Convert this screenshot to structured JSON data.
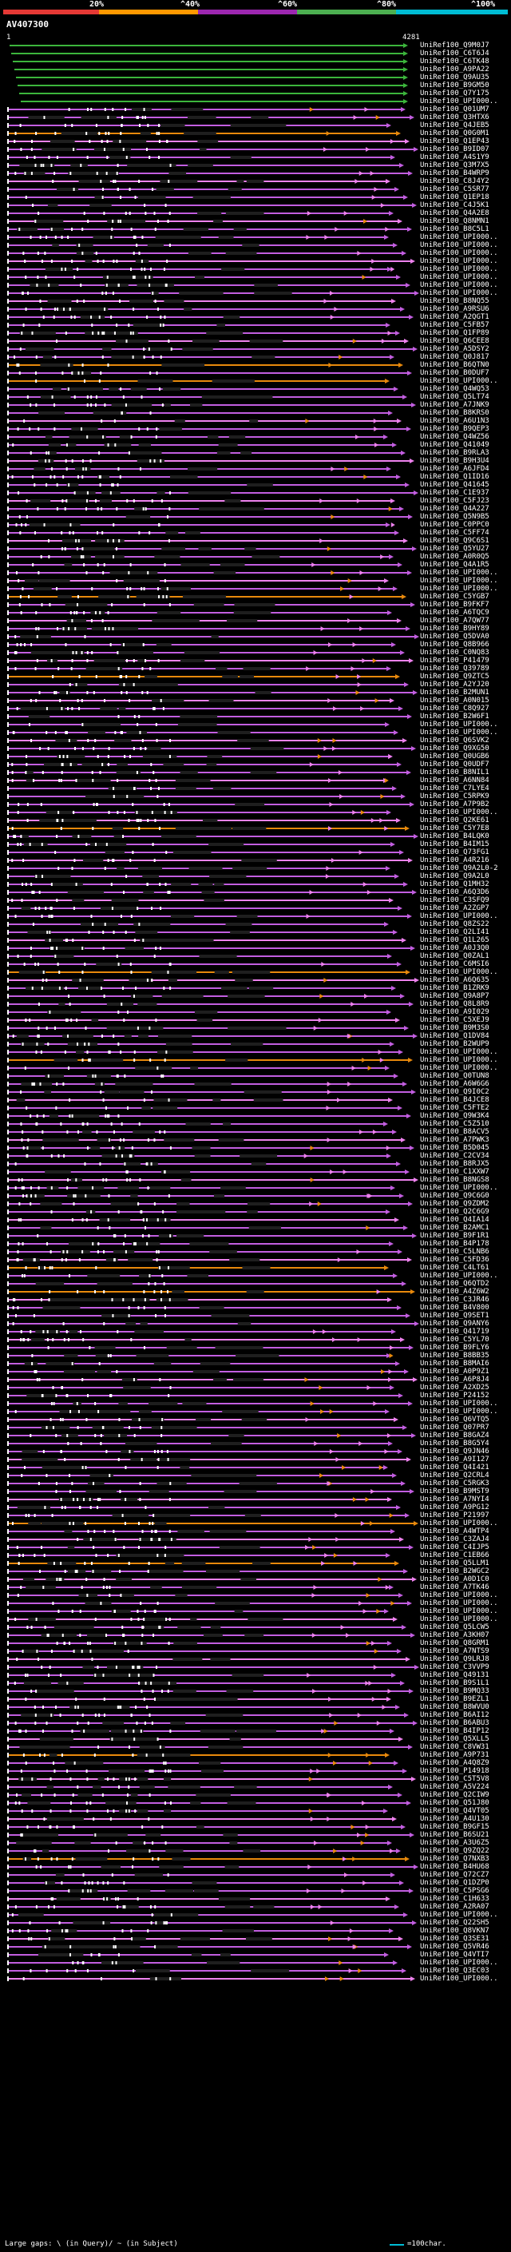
{
  "legend": {
    "labels": [
      "20%",
      "^40%",
      "^60%",
      "^80%",
      "^100%"
    ],
    "colors": [
      "#e53935",
      "#ff9800",
      "#9c27b0",
      "#4caf50",
      "#00bcd4"
    ]
  },
  "query": {
    "id": "AV407300",
    "start": "1",
    "end": "4281"
  },
  "colors": {
    "green": "#3cb53c",
    "purple": "#c25ee0",
    "pink": "#ee82ee",
    "orange": "#e8890c",
    "gap": "#1e1e1e"
  },
  "hits": [
    "UniRef100_Q9M0J7",
    "UniRef100_C6T6J4",
    "UniRef100_C6TK48",
    "UniRef100_A9PA22",
    "UniRef100_Q9AU35",
    "UniRef100_B9GM50",
    "UniRef100_Q7Y175",
    "UniRef100_UPI000..",
    "UniRef100_Q01UM7",
    "UniRef100_Q3HTX6",
    "UniRef100_Q4JEB5",
    "UniRef100_Q0G0M1",
    "UniRef100_Q1EP43",
    "UniRef100_B9ID07",
    "UniRef100_A4S1Y9",
    "UniRef100_Q3M7X5",
    "UniRef100_B4WRP9",
    "UniRef100_C8J4Y2",
    "UniRef100_C5SR77",
    "UniRef100_Q1EP18",
    "UniRef100_C4J5K1",
    "UniRef100_Q4A2E8",
    "UniRef100_Q8NMN1",
    "UniRef100_B8C5L1",
    "UniRef100_UPI000..",
    "UniRef100_UPI000..",
    "UniRef100_UPI000..",
    "UniRef100_UPI000..",
    "UniRef100_UPI000..",
    "UniRef100_UPI000..",
    "UniRef100_UPI000..",
    "UniRef100_UPI000..",
    "UniRef100_B8NQ55",
    "UniRef100_A9RSU6",
    "UniRef100_A2QGT1",
    "UniRef100_C5FB57",
    "UniRef100_Q1FP89",
    "UniRef100_Q6CEE8",
    "UniRef100_A5DSY2",
    "UniRef100_Q0J817",
    "UniRef100_B6QTN0",
    "UniRef100_B0DUF7",
    "UniRef100_UPI000..",
    "UniRef100_Q4WQ53",
    "UniRef100_Q5LT74",
    "UniRef100_A7JNK9",
    "UniRef100_B8KRS0",
    "UniRef100_A6U1N3",
    "UniRef100_B9QEP3",
    "UniRef100_Q4WZ56",
    "UniRef100_Q41049",
    "UniRef100_B9RLA3",
    "UniRef100_B9H3U4",
    "UniRef100_A6JFD4",
    "UniRef100_Q1ID16",
    "UniRef100_Q41645",
    "UniRef100_C1E937",
    "UniRef100_C5FJ23",
    "UniRef100_Q4A227",
    "UniRef100_Q5N9B5",
    "UniRef100_C0PPC0",
    "UniRef100_C5FF74",
    "UniRef100_Q9C6S1",
    "UniRef100_Q5YU27",
    "UniRef100_A0R0Q5",
    "UniRef100_Q4A1R5",
    "UniRef100_UPI000..",
    "UniRef100_UPI000..",
    "UniRef100_UPI000..",
    "UniRef100_C5YGB7",
    "UniRef100_B9FKF7",
    "UniRef100_A6TQC9",
    "UniRef100_A7QW77",
    "UniRef100_B9HY89",
    "UniRef100_Q5DVA0",
    "UniRef100_Q8B966",
    "UniRef100_C0NQ83",
    "UniRef100_P41479",
    "UniRef100_Q39789",
    "UniRef100_Q9ZTC5",
    "UniRef100_A2YJ20",
    "UniRef100_B2MUN1",
    "UniRef100_A0N015",
    "UniRef100_C8Q927",
    "UniRef100_B2W6F1",
    "UniRef100_UPI000..",
    "UniRef100_UPI000..",
    "UniRef100_Q6SVK2",
    "UniRef100_Q9XG50",
    "UniRef100_Q0UGB6",
    "UniRef100_Q0UDF7",
    "UniRef100_B8NIL1",
    "UniRef100_A6NN84",
    "UniRef100_C7LYE4",
    "UniRef100_C5RPK9",
    "UniRef100_A7P9B2",
    "UniRef100_UPI000..",
    "UniRef100_Q2KE61",
    "UniRef100_C5Y7E8",
    "UniRef100_B4LQK0",
    "UniRef100_B4IM15",
    "UniRef100_Q73FG1",
    "UniRef100_A4R216",
    "UniRef100_Q9A2L0-2",
    "UniRef100_Q9A2L0",
    "UniRef100_Q1MH32",
    "UniRef100_A6Q3D6",
    "UniRef100_C3SFQ9",
    "UniRef100_A2ZGP7",
    "UniRef100_UPI000..",
    "UniRef100_Q8ZS22",
    "UniRef100_Q2LI41",
    "UniRef100_Q1L265",
    "UniRef100_A0J3Q0",
    "UniRef100_Q0ZAL1",
    "UniRef100_C6MSI6",
    "UniRef100_UPI000..",
    "UniRef100_A6Q635",
    "UniRef100_B1ZRK9",
    "UniRef100_Q9A8P7",
    "UniRef100_Q8L8R9",
    "UniRef100_A9I029",
    "UniRef100_C5XEJ9",
    "UniRef100_B9M3S0",
    "UniRef100_Q1DV84",
    "UniRef100_B2WUP9",
    "UniRef100_UPI000..",
    "UniRef100_UPI000..",
    "UniRef100_UPI000..",
    "UniRef100_Q0TUN8",
    "UniRef100_A6W6G6",
    "UniRef100_Q9I0C2",
    "UniRef100_B4JCE8",
    "UniRef100_C5FTE2",
    "UniRef100_Q9W3K4",
    "UniRef100_C5Z510",
    "UniRef100_B8ACV5",
    "UniRef100_A7PWK3",
    "UniRef100_B5D045",
    "UniRef100_C2CV34",
    "UniRef100_B8RJX5",
    "UniRef100_C1XXW7",
    "UniRef100_B8NGS8",
    "UniRef100_UPI000..",
    "UniRef100_Q9C6G0",
    "UniRef100_Q9ZDM2",
    "UniRef100_Q2C6G9",
    "UniRef100_Q4IA14",
    "UniRef100_B2AMC1",
    "UniRef100_B9F1R1",
    "UniRef100_B4P178",
    "UniRef100_C5LNB6",
    "UniRef100_C5FD36",
    "UniRef100_C4LT61",
    "UniRef100_UPI000..",
    "UniRef100_Q6QTD2",
    "UniRef100_A4Z6W2",
    "UniRef100_C3JR46",
    "UniRef100_B4V800",
    "UniRef100_Q9SET1",
    "UniRef100_Q9ANY6",
    "UniRef100_Q41719",
    "UniRef100_C5YL70",
    "UniRef100_B9FLY6",
    "UniRef100_B8BB35",
    "UniRef100_B8MAI6",
    "UniRef100_A0P9Z1",
    "UniRef100_A6P8J4",
    "UniRef100_A2XD25",
    "UniRef100_P24152",
    "UniRef100_UPI000..",
    "UniRef100_UPI000..",
    "UniRef100_Q6VTQ5",
    "UniRef100_Q07PR7",
    "UniRef100_B8GAZ4",
    "UniRef100_B8G5Y4",
    "UniRef100_Q9JN46",
    "UniRef100_A9I127",
    "UniRef100_Q4I421",
    "UniRef100_Q2CRL4",
    "UniRef100_C5RGK3",
    "UniRef100_B9MST9",
    "UniRef100_A7NYI4",
    "UniRef100_A9PG12",
    "UniRef100_P21997",
    "UniRef100_UPI000..",
    "UniRef100_A4WTP4",
    "UniRef100_C3ZAJ4",
    "UniRef100_C4IJP5",
    "UniRef100_C1EB66",
    "UniRef100_Q5LLM1",
    "UniRef100_B2WGC2",
    "UniRef100_A0D1C0",
    "UniRef100_A7TK46",
    "UniRef100_UPI000..",
    "UniRef100_UPI000..",
    "UniRef100_UPI000..",
    "UniRef100_UPI000..",
    "UniRef100_Q5LCW5",
    "UniRef100_A3KH07",
    "UniRef100_Q8GRM1",
    "UniRef100_A7NTS9",
    "UniRef100_Q9LRJ8",
    "UniRef100_C3VVP9",
    "UniRef100_Q49131",
    "UniRef100_B9S1L1",
    "UniRef100_B9MQ33",
    "UniRef100_B9EZL1",
    "UniRef100_B8WVU0",
    "UniRef100_B6AI12",
    "UniRef100_B6ABU3",
    "UniRef100_B4IP12",
    "UniRef100_Q5XLL5",
    "UniRef100_C8VW31",
    "UniRef100_A9P731",
    "UniRef100_A4Q8Z9",
    "UniRef100_P14918",
    "UniRef100_C5T5V8",
    "UniRef100_A5V224",
    "UniRef100_Q2CIW9",
    "UniRef100_Q51J80",
    "UniRef100_Q4VT05",
    "UniRef100_A4U130",
    "UniRef100_B9GF15",
    "UniRef100_B6SU21",
    "UniRef100_A3U6Z5",
    "UniRef100_Q9ZQ22",
    "UniRef100_Q7NXB3",
    "UniRef100_B4HU68",
    "UniRef100_Q72CZ7",
    "UniRef100_Q1DZP0",
    "UniRef100_C5PSG6",
    "UniRef100_C1H633",
    "UniRef100_A2RA07",
    "UniRef100_UPI000..",
    "UniRef100_Q22SH5",
    "UniRef100_Q8VKN7",
    "UniRef100_Q3SE31",
    "UniRef100_Q5VR46",
    "UniRef100_Q4VTI7",
    "UniRef100_UPI000..",
    "UniRef100_Q3EC03",
    "UniRef100_UPI000.."
  ],
  "footer": {
    "gaps_text": "Large gaps: \\ (in Query)/ ~ (in Subject)",
    "scale_text": "=100char."
  }
}
